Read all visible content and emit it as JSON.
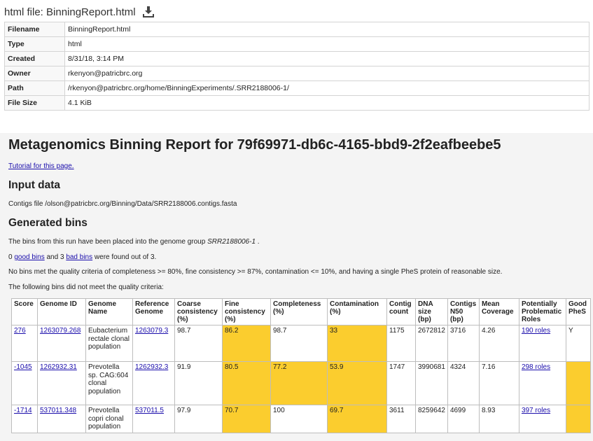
{
  "file": {
    "title": "html file: BinningReport.html",
    "download_icon": "download-icon",
    "props": [
      {
        "label": "Filename",
        "value": "BinningReport.html"
      },
      {
        "label": "Type",
        "value": "html"
      },
      {
        "label": "Created",
        "value": "8/31/18, 3:14 PM"
      },
      {
        "label": "Owner",
        "value": "rkenyon@patricbrc.org"
      },
      {
        "label": "Path",
        "value": "/rkenyon@patricbrc.org/home/BinningExperiments/.SRR2188006-1/"
      },
      {
        "label": "File Size",
        "value": "4.1 KiB"
      }
    ]
  },
  "report": {
    "title": "Metagenomics Binning Report for 79f69971-db6c-4165-bbd9-2f2eafbeebe5",
    "tutorial_link": "Tutorial for this page.",
    "input_heading": "Input data",
    "contigs_text": "Contigs file /olson@patricbrc.org/Binning/Data/SRR2188006.contigs.fasta",
    "generated_heading": "Generated bins",
    "group_text_pre": "The bins from this run have been placed into the genome group ",
    "group_name": "SRR2188006-1",
    "group_text_post": " .",
    "good_count": "0",
    "good_link": "good bins",
    "and_text": "and 3",
    "bad_link": "bad bins",
    "found_text": "were found out of 3.",
    "criteria_text": "No bins met the quality criteria of completeness >= 80%, fine consistency >= 87%, contamination <= 10%, and having a single PheS protein of reasonable size.",
    "failed_text": "The following bins did not meet the quality criteria:",
    "highlight_color": "#fbcd2e",
    "columns": [
      "Score",
      "Genome ID",
      "Genome Name",
      "Reference Genome",
      "Coarse consistency (%)",
      "Fine consistency (%)",
      "Completeness (%)",
      "Contamination (%)",
      "Contig count",
      "DNA size (bp)",
      "Contigs N50 (bp)",
      "Mean Coverage",
      "Potentially Problematic Roles",
      "Good PheS"
    ],
    "rows": [
      {
        "score": "276",
        "genome_id": "1263079.268",
        "genome_name": "Eubacterium rectale clonal population",
        "reference": "1263079.3",
        "coarse": "98.7",
        "fine": "86.2",
        "completeness": "98.7",
        "contamination": "33",
        "contigs": "1175",
        "dna": "2672812",
        "n50": "3716",
        "coverage": "4.26",
        "roles": "190 roles",
        "phes": "Y"
      },
      {
        "score": "-1045",
        "genome_id": "1262932.31",
        "genome_name": "Prevotella sp. CAG:604 clonal population",
        "reference": "1262932.3",
        "coarse": "91.9",
        "fine": "80.5",
        "completeness": "77.2",
        "contamination": "53.9",
        "contigs": "1747",
        "dna": "3990681",
        "n50": "4324",
        "coverage": "7.16",
        "roles": "298 roles",
        "phes": ""
      },
      {
        "score": "-1714",
        "genome_id": "537011.348",
        "genome_name": "Prevotella copri clonal population",
        "reference": "537011.5",
        "coarse": "97.9",
        "fine": "70.7",
        "completeness": "100",
        "contamination": "69.7",
        "contigs": "3611",
        "dna": "8259642",
        "n50": "4699",
        "coverage": "8.93",
        "roles": "397 roles",
        "phes": ""
      }
    ]
  }
}
